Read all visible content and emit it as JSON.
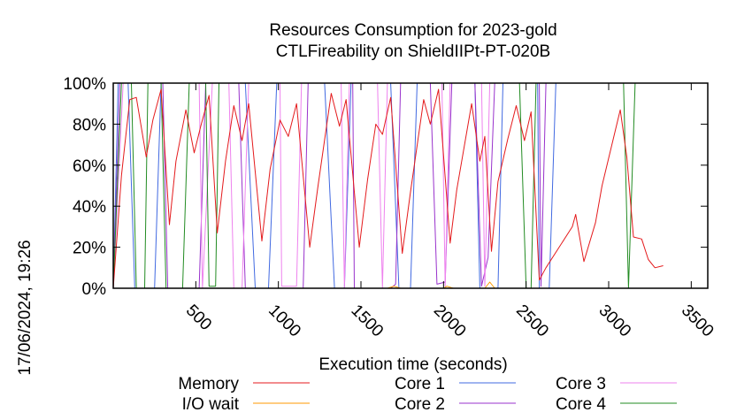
{
  "chart_data": {
    "type": "line",
    "title": [
      "Resources Consumption for 2023-gold",
      "CTLFireability on ShieldIIPt-PT-020B"
    ],
    "xlabel": "Execution time (seconds)",
    "ylabel": "",
    "side_label": "17/06/2024, 19:26",
    "xlim": [
      0,
      3600
    ],
    "ylim": [
      0,
      100
    ],
    "x_ticks": [
      500,
      1000,
      1500,
      2000,
      2500,
      3000,
      3500
    ],
    "y_ticks": [
      0,
      20,
      40,
      60,
      80,
      100
    ],
    "y_tick_labels": [
      "0%",
      "20%",
      "40%",
      "60%",
      "80%",
      "100%"
    ],
    "grid": false,
    "legend_position": "bottom",
    "series": [
      {
        "name": "Memory",
        "color": "#e41a1c",
        "points": [
          [
            0,
            0
          ],
          [
            50,
            55
          ],
          [
            100,
            92
          ],
          [
            140,
            93
          ],
          [
            200,
            64
          ],
          [
            240,
            82
          ],
          [
            290,
            97
          ],
          [
            340,
            31
          ],
          [
            380,
            62
          ],
          [
            440,
            87
          ],
          [
            490,
            66
          ],
          [
            530,
            79
          ],
          [
            580,
            94
          ],
          [
            630,
            27
          ],
          [
            680,
            62
          ],
          [
            730,
            89
          ],
          [
            780,
            72
          ],
          [
            820,
            90
          ],
          [
            900,
            23
          ],
          [
            950,
            58
          ],
          [
            1010,
            82
          ],
          [
            1060,
            74
          ],
          [
            1110,
            90
          ],
          [
            1190,
            20
          ],
          [
            1240,
            50
          ],
          [
            1320,
            95
          ],
          [
            1370,
            79
          ],
          [
            1410,
            92
          ],
          [
            1490,
            20
          ],
          [
            1540,
            53
          ],
          [
            1590,
            80
          ],
          [
            1630,
            75
          ],
          [
            1680,
            93
          ],
          [
            1750,
            17
          ],
          [
            1800,
            47
          ],
          [
            1880,
            92
          ],
          [
            1920,
            80
          ],
          [
            1970,
            97
          ],
          [
            2040,
            22
          ],
          [
            2080,
            48
          ],
          [
            2170,
            90
          ],
          [
            2220,
            62
          ],
          [
            2250,
            74
          ],
          [
            2290,
            18
          ],
          [
            2330,
            52
          ],
          [
            2390,
            73
          ],
          [
            2440,
            89
          ],
          [
            2490,
            72
          ],
          [
            2530,
            86
          ],
          [
            2580,
            4
          ],
          [
            2620,
            10
          ],
          [
            2780,
            30
          ],
          [
            2800,
            36
          ],
          [
            2850,
            13
          ],
          [
            2920,
            32
          ],
          [
            2960,
            50
          ],
          [
            3070,
            87
          ],
          [
            3110,
            64
          ],
          [
            3150,
            25
          ],
          [
            3200,
            24
          ],
          [
            3240,
            14
          ],
          [
            3280,
            10
          ],
          [
            3330,
            11
          ]
        ]
      },
      {
        "name": "I/O wait",
        "color": "#ff9900",
        "points": [
          [
            0,
            0
          ],
          [
            1660,
            0
          ],
          [
            1700,
            1
          ],
          [
            1740,
            0
          ],
          [
            2000,
            0
          ],
          [
            2020,
            1
          ],
          [
            2060,
            0
          ],
          [
            2250,
            0
          ],
          [
            2280,
            3
          ],
          [
            2310,
            0
          ],
          [
            3600,
            0
          ]
        ]
      },
      {
        "name": "Core 1",
        "color": "#4169e1",
        "points": [
          [
            0,
            0
          ],
          [
            30,
            100
          ],
          [
            90,
            100
          ],
          [
            130,
            0
          ],
          [
            250,
            0
          ],
          [
            290,
            100
          ],
          [
            800,
            100
          ],
          [
            860,
            0
          ],
          [
            940,
            0
          ],
          [
            990,
            100
          ],
          [
            1280,
            100
          ],
          [
            1340,
            0
          ],
          [
            1400,
            0
          ],
          [
            1440,
            100
          ],
          [
            1680,
            100
          ],
          [
            1730,
            0
          ],
          [
            1800,
            0
          ],
          [
            1840,
            100
          ],
          [
            2190,
            100
          ],
          [
            2220,
            0
          ],
          [
            2330,
            0
          ],
          [
            2360,
            100
          ],
          [
            2570,
            100
          ],
          [
            2580,
            0
          ],
          [
            2640,
            0
          ],
          [
            2680,
            100
          ],
          [
            3600,
            100
          ]
        ]
      },
      {
        "name": "Core 2",
        "color": "#9932cc",
        "points": [
          [
            0,
            0
          ],
          [
            40,
            100
          ],
          [
            300,
            100
          ],
          [
            330,
            0
          ],
          [
            520,
            0
          ],
          [
            560,
            100
          ],
          [
            760,
            100
          ],
          [
            800,
            0
          ],
          [
            1150,
            0
          ],
          [
            1180,
            100
          ],
          [
            1450,
            100
          ],
          [
            1460,
            0
          ],
          [
            1680,
            0
          ],
          [
            1710,
            2
          ],
          [
            1740,
            100
          ],
          [
            1920,
            100
          ],
          [
            1960,
            2
          ],
          [
            2010,
            3
          ],
          [
            2050,
            100
          ],
          [
            2190,
            100
          ],
          [
            2230,
            1
          ],
          [
            2270,
            15
          ],
          [
            2310,
            100
          ],
          [
            2580,
            100
          ],
          [
            2590,
            1
          ],
          [
            2620,
            100
          ],
          [
            3600,
            100
          ]
        ]
      },
      {
        "name": "Core 3",
        "color": "#ee82ee",
        "points": [
          [
            0,
            0
          ],
          [
            60,
            100
          ],
          [
            520,
            100
          ],
          [
            540,
            0
          ],
          [
            600,
            100
          ],
          [
            700,
            100
          ],
          [
            730,
            0
          ],
          [
            780,
            0
          ],
          [
            820,
            100
          ],
          [
            1010,
            100
          ],
          [
            1020,
            1
          ],
          [
            1110,
            1
          ],
          [
            1140,
            100
          ],
          [
            1380,
            100
          ],
          [
            1400,
            0
          ],
          [
            1430,
            100
          ],
          [
            1600,
            100
          ],
          [
            1630,
            0
          ],
          [
            1660,
            100
          ],
          [
            1990,
            100
          ],
          [
            2010,
            1
          ],
          [
            2040,
            100
          ],
          [
            2230,
            100
          ],
          [
            2250,
            1
          ],
          [
            2280,
            100
          ],
          [
            3600,
            100
          ]
        ]
      },
      {
        "name": "Core 4",
        "color": "#228b22",
        "points": [
          [
            0,
            0
          ],
          [
            50,
            100
          ],
          [
            110,
            100
          ],
          [
            140,
            0
          ],
          [
            190,
            0
          ],
          [
            210,
            100
          ],
          [
            290,
            100
          ],
          [
            320,
            0
          ],
          [
            420,
            0
          ],
          [
            460,
            100
          ],
          [
            560,
            100
          ],
          [
            580,
            1
          ],
          [
            620,
            1
          ],
          [
            640,
            100
          ],
          [
            1340,
            100
          ],
          [
            1380,
            100
          ],
          [
            2460,
            100
          ],
          [
            2500,
            0
          ],
          [
            2530,
            0
          ],
          [
            2560,
            100
          ],
          [
            3090,
            100
          ],
          [
            3120,
            0
          ],
          [
            3160,
            100
          ],
          [
            3600,
            100
          ]
        ]
      }
    ]
  }
}
